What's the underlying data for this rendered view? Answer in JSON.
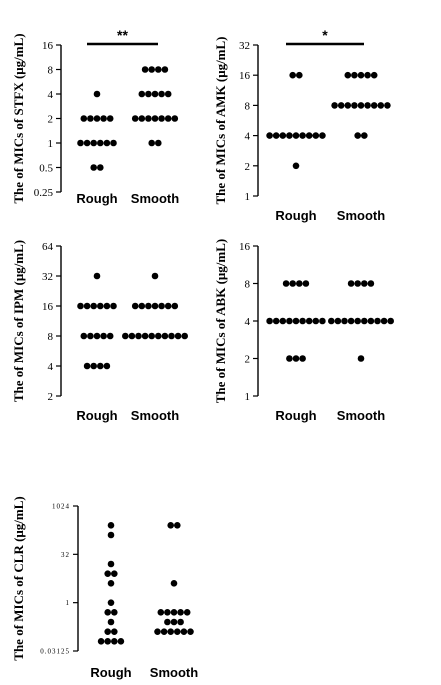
{
  "chart_data": [
    {
      "type": "scatter",
      "ylabel": "The of MICs of STFX (μg/mL)",
      "yscale": "log2",
      "ylim": [
        0.25,
        16
      ],
      "yticks": [
        0.25,
        0.5,
        1,
        2,
        4,
        8,
        16
      ],
      "ytick_labels": [
        "0.25",
        "0.5",
        "1",
        "2",
        "4",
        "8",
        "16"
      ],
      "categories": [
        "Rough",
        "Smooth"
      ],
      "series": [
        {
          "category": "Rough",
          "values": [
            4,
            2,
            2,
            2,
            2,
            2,
            1,
            1,
            1,
            1,
            1,
            1,
            0.5,
            0.5
          ]
        },
        {
          "category": "Smooth",
          "values": [
            8,
            8,
            8,
            8,
            4,
            4,
            4,
            4,
            4,
            2,
            2,
            2,
            2,
            2,
            2,
            2,
            1,
            1
          ]
        }
      ],
      "significance": "**"
    },
    {
      "type": "scatter",
      "ylabel": "The of MICs of AMK (μg/mL)",
      "yscale": "log2",
      "ylim": [
        1,
        32
      ],
      "yticks": [
        1,
        2,
        4,
        8,
        16,
        32
      ],
      "ytick_labels": [
        "1",
        "2",
        "4",
        "8",
        "16",
        "32"
      ],
      "categories": [
        "Rough",
        "Smooth"
      ],
      "series": [
        {
          "category": "Rough",
          "values": [
            16,
            16,
            4,
            4,
            4,
            4,
            4,
            4,
            4,
            4,
            4,
            2
          ]
        },
        {
          "category": "Smooth",
          "values": [
            16,
            16,
            16,
            16,
            16,
            8,
            8,
            8,
            8,
            8,
            8,
            8,
            8,
            8,
            4,
            4
          ]
        }
      ],
      "significance": "*"
    },
    {
      "type": "scatter",
      "ylabel": "The of MICs of IPM (μg/mL)",
      "yscale": "log2",
      "ylim": [
        2,
        64
      ],
      "yticks": [
        2,
        4,
        8,
        16,
        32,
        64
      ],
      "ytick_labels": [
        "2",
        "4",
        "8",
        "16",
        "32",
        "64"
      ],
      "categories": [
        "Rough",
        "Smooth"
      ],
      "series": [
        {
          "category": "Rough",
          "values": [
            32,
            16,
            16,
            16,
            16,
            16,
            16,
            8,
            8,
            8,
            8,
            8,
            4,
            4,
            4,
            4
          ]
        },
        {
          "category": "Smooth",
          "values": [
            32,
            16,
            16,
            16,
            16,
            16,
            16,
            16,
            8,
            8,
            8,
            8,
            8,
            8,
            8,
            8,
            8,
            8
          ]
        }
      ],
      "significance": ""
    },
    {
      "type": "scatter",
      "ylabel": "The of MICs of ABK (μg/mL)",
      "yscale": "log2",
      "ylim": [
        1,
        16
      ],
      "yticks": [
        1,
        2,
        4,
        8,
        16
      ],
      "ytick_labels": [
        "1",
        "2",
        "4",
        "8",
        "16"
      ],
      "categories": [
        "Rough",
        "Smooth"
      ],
      "series": [
        {
          "category": "Rough",
          "values": [
            8,
            8,
            8,
            8,
            4,
            4,
            4,
            4,
            4,
            4,
            4,
            4,
            4,
            2,
            2,
            2
          ]
        },
        {
          "category": "Smooth",
          "values": [
            8,
            8,
            8,
            8,
            4,
            4,
            4,
            4,
            4,
            4,
            4,
            4,
            4,
            4,
            2
          ]
        }
      ],
      "significance": ""
    },
    {
      "type": "scatter",
      "ylabel": "The of MICs of CLR (μg/mL)",
      "yscale": "log2",
      "ylim": [
        0.03125,
        1024
      ],
      "yticks": [
        0.03125,
        1,
        32,
        1024
      ],
      "ytick_labels": [
        "0.03125",
        "1",
        "32",
        "1024"
      ],
      "categories": [
        "Rough",
        "Smooth"
      ],
      "series": [
        {
          "category": "Rough",
          "values": [
            256,
            128,
            16,
            8,
            8,
            4,
            1,
            0.5,
            0.5,
            0.25,
            0.125,
            0.125,
            0.0625,
            0.0625,
            0.0625,
            0.0625
          ]
        },
        {
          "category": "Smooth",
          "values": [
            256,
            256,
            4,
            0.5,
            0.5,
            0.5,
            0.5,
            0.5,
            0.25,
            0.25,
            0.25,
            0.125,
            0.125,
            0.125,
            0.125,
            0.125,
            0.125
          ]
        }
      ],
      "significance": ""
    }
  ]
}
